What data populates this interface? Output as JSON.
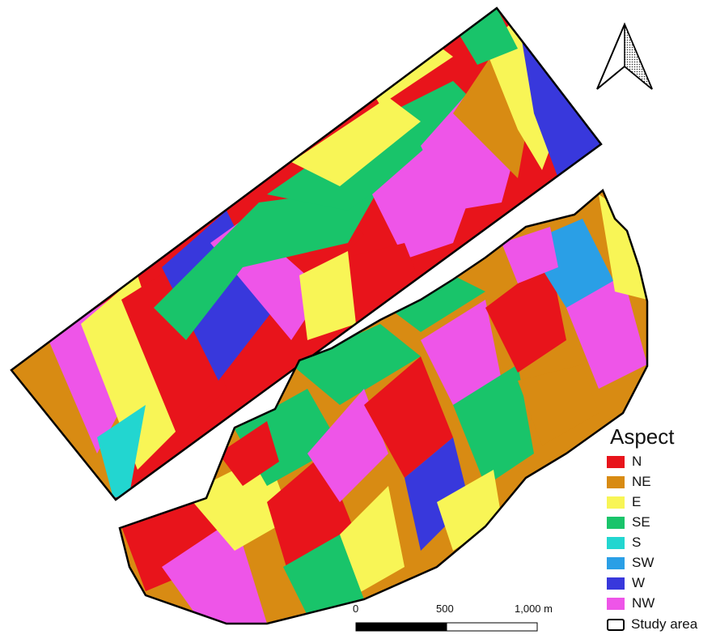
{
  "legend": {
    "title": "Aspect",
    "items": [
      {
        "label": "N",
        "color": "#e8141b"
      },
      {
        "label": "NE",
        "color": "#d88b13"
      },
      {
        "label": "E",
        "color": "#f8f556"
      },
      {
        "label": "SE",
        "color": "#19c46a"
      },
      {
        "label": "S",
        "color": "#22d6d0"
      },
      {
        "label": "SW",
        "color": "#2a9fe6"
      },
      {
        "label": "W",
        "color": "#3838dc"
      },
      {
        "label": "NW",
        "color": "#ee55e8"
      }
    ],
    "study_area_label": "Study area"
  },
  "scale_bar": {
    "labels": [
      "0",
      "500",
      "1,000 m"
    ]
  },
  "north_arrow": {
    "icon": "north-arrow-icon"
  }
}
